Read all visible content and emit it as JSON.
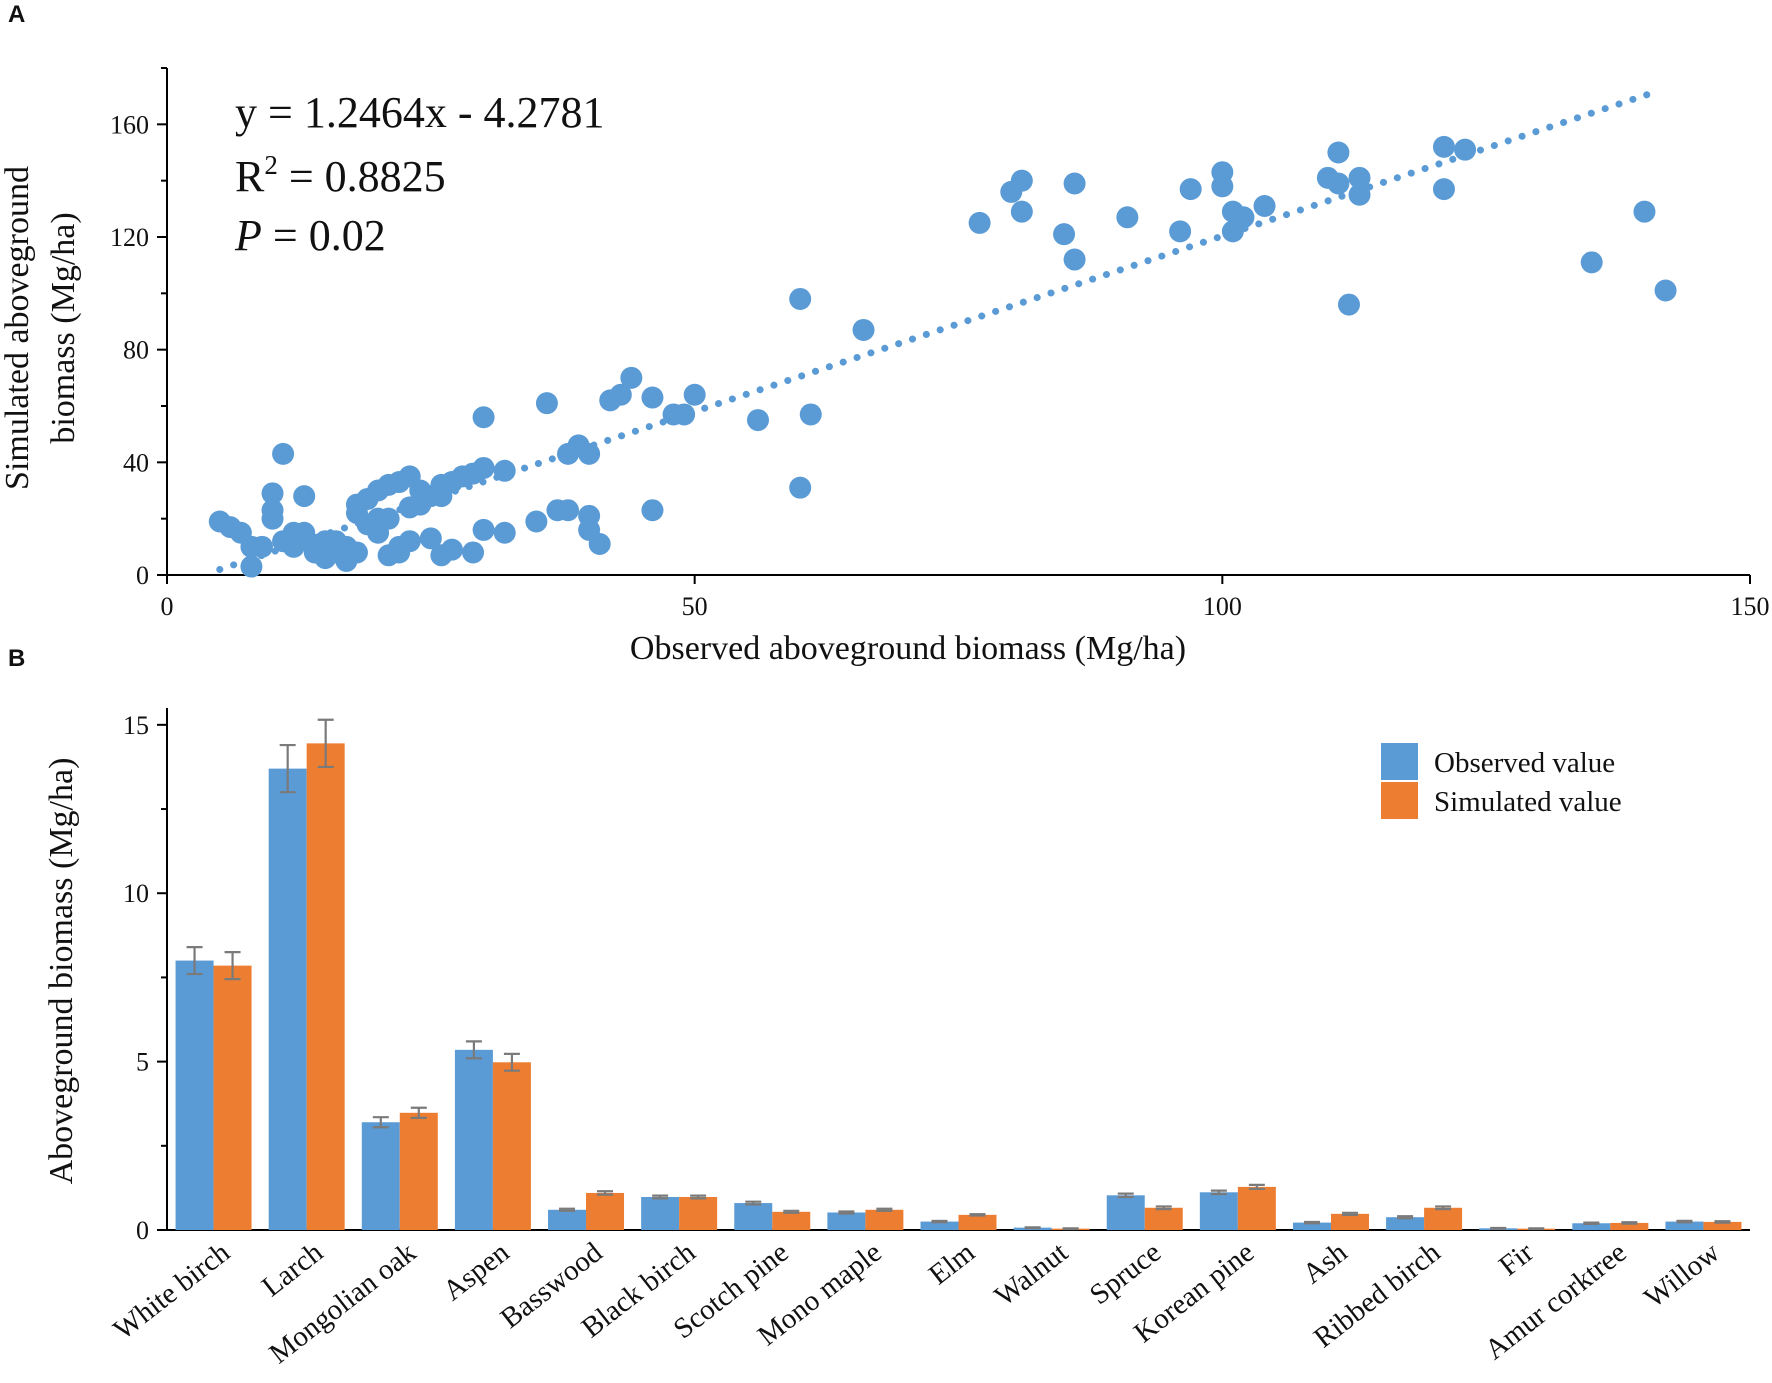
{
  "colors": {
    "observed": "#5B9BD5",
    "simulated": "#ED7D31",
    "axis": "#000000",
    "errorbar": "#7a7a7a"
  },
  "chart_data": [
    {
      "panel": "A",
      "type": "scatter",
      "xlabel": "Observed aboveground biomass (Mg/ha)",
      "ylabel": "Simulated aboveground biomass (Mg/ha)",
      "ylabel_lines": [
        "Simulated aboveground",
        "biomass (Mg/ha)"
      ],
      "xlim": [
        0,
        150
      ],
      "ylim": [
        0,
        180
      ],
      "xticks": [
        0,
        50,
        100,
        150
      ],
      "yticks": [
        0,
        40,
        80,
        120,
        160
      ],
      "annotation": {
        "equation": "y = 1.2464x - 4.2781",
        "r2_base": "R",
        "r2_sup": "2",
        "r2_value": " = 0.8825",
        "p_label": "P",
        "p_value": " = 0.02"
      },
      "trendline": {
        "slope": 1.2464,
        "intercept": -4.2781,
        "x_range": [
          5,
          141.5
        ],
        "style": "dotted"
      },
      "points": [
        [
          5,
          19
        ],
        [
          6,
          17
        ],
        [
          7,
          15
        ],
        [
          8,
          3
        ],
        [
          8,
          10
        ],
        [
          9,
          10
        ],
        [
          10,
          29
        ],
        [
          10,
          23
        ],
        [
          10,
          20
        ],
        [
          11,
          43
        ],
        [
          11,
          12
        ],
        [
          12,
          15
        ],
        [
          12,
          10
        ],
        [
          13,
          28
        ],
        [
          13,
          15
        ],
        [
          14,
          8
        ],
        [
          14,
          10
        ],
        [
          15,
          12
        ],
        [
          15,
          6
        ],
        [
          16,
          8
        ],
        [
          16,
          12
        ],
        [
          17,
          5
        ],
        [
          17,
          10
        ],
        [
          18,
          8
        ],
        [
          18,
          22
        ],
        [
          18,
          25
        ],
        [
          19,
          18
        ],
        [
          19,
          27
        ],
        [
          20,
          15
        ],
        [
          20,
          20
        ],
        [
          20,
          30
        ],
        [
          21,
          7
        ],
        [
          21,
          20
        ],
        [
          21,
          32
        ],
        [
          22,
          8
        ],
        [
          22,
          10
        ],
        [
          22,
          33
        ],
        [
          23,
          12
        ],
        [
          23,
          24
        ],
        [
          23,
          35
        ],
        [
          24,
          25
        ],
        [
          24,
          30
        ],
        [
          25,
          13
        ],
        [
          25,
          28
        ],
        [
          26,
          7
        ],
        [
          26,
          28
        ],
        [
          26,
          32
        ],
        [
          27,
          9
        ],
        [
          27,
          33
        ],
        [
          28,
          35
        ],
        [
          29,
          8
        ],
        [
          29,
          36
        ],
        [
          30,
          16
        ],
        [
          30,
          38
        ],
        [
          30,
          56
        ],
        [
          32,
          15
        ],
        [
          32,
          37
        ],
        [
          35,
          19
        ],
        [
          36,
          61
        ],
        [
          37,
          23
        ],
        [
          38,
          23
        ],
        [
          38,
          43
        ],
        [
          39,
          46
        ],
        [
          40,
          16
        ],
        [
          40,
          21
        ],
        [
          40,
          43
        ],
        [
          41,
          11
        ],
        [
          42,
          62
        ],
        [
          43,
          64
        ],
        [
          44,
          70
        ],
        [
          46,
          63
        ],
        [
          46,
          23
        ],
        [
          48,
          57
        ],
        [
          49,
          57
        ],
        [
          50,
          64
        ],
        [
          56,
          55
        ],
        [
          60,
          98
        ],
        [
          60,
          31
        ],
        [
          61,
          57
        ],
        [
          66,
          87
        ],
        [
          77,
          125
        ],
        [
          80,
          136
        ],
        [
          81,
          129
        ],
        [
          81,
          140
        ],
        [
          85,
          121
        ],
        [
          86,
          112
        ],
        [
          86,
          139
        ],
        [
          91,
          127
        ],
        [
          96,
          122
        ],
        [
          97,
          137
        ],
        [
          100,
          143
        ],
        [
          100,
          138
        ],
        [
          101,
          122
        ],
        [
          101,
          129
        ],
        [
          102,
          127
        ],
        [
          104,
          131
        ],
        [
          110,
          141
        ],
        [
          111,
          150
        ],
        [
          111,
          139
        ],
        [
          112,
          96
        ],
        [
          113,
          141
        ],
        [
          113,
          135
        ],
        [
          121,
          152
        ],
        [
          121,
          137
        ],
        [
          123,
          151
        ],
        [
          135,
          111
        ],
        [
          140,
          129
        ],
        [
          142,
          101
        ]
      ]
    },
    {
      "panel": "B",
      "type": "bar",
      "ylabel": "Aboveground biomass (Mg/ha)",
      "ylim": [
        0,
        15.5
      ],
      "yticks": [
        0,
        5,
        10,
        15
      ],
      "categories": [
        "White birch",
        "Larch",
        "Mongolian oak",
        "Aspen",
        "Basswood",
        "Black birch",
        "Scotch pine",
        "Mono maple",
        "Elm",
        "Walnut",
        "Spruce",
        "Korean pine",
        "Ash",
        "Ribbed birch",
        "Fir",
        "Amur corktree",
        "Willow"
      ],
      "series": [
        {
          "name": "Observed value",
          "values": [
            8.0,
            13.7,
            3.2,
            5.35,
            0.6,
            0.98,
            0.8,
            0.52,
            0.25,
            0.07,
            1.03,
            1.12,
            0.22,
            0.38,
            0.05,
            0.2,
            0.25
          ],
          "errors": [
            0.4,
            0.7,
            0.15,
            0.25,
            0.03,
            0.04,
            0.04,
            0.03,
            0.02,
            0.01,
            0.05,
            0.05,
            0.02,
            0.03,
            0.01,
            0.02,
            0.02
          ]
        },
        {
          "name": "Simulated value",
          "values": [
            7.85,
            14.45,
            3.48,
            4.98,
            1.1,
            0.98,
            0.54,
            0.6,
            0.45,
            0.04,
            0.66,
            1.28,
            0.48,
            0.66,
            0.04,
            0.21,
            0.24
          ],
          "errors": [
            0.4,
            0.7,
            0.15,
            0.25,
            0.05,
            0.04,
            0.03,
            0.03,
            0.02,
            0.01,
            0.04,
            0.06,
            0.03,
            0.04,
            0.01,
            0.02,
            0.02
          ]
        }
      ],
      "legend": {
        "position": "top-right"
      }
    }
  ]
}
